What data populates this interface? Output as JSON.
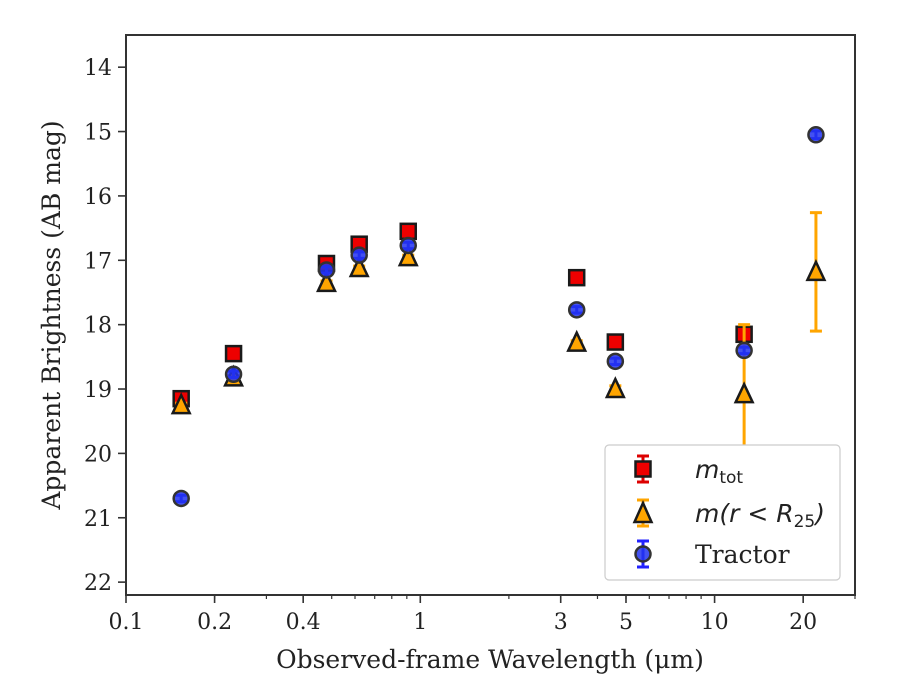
{
  "chart_data": {
    "type": "scatter",
    "xscale": "log",
    "yinverted": true,
    "xlabel": "Observed-frame Wavelength (μm)",
    "ylabel": "Apparent Brightness (AB mag)",
    "xlim": [
      0.1,
      30
    ],
    "ylim": [
      22.2,
      13.5
    ],
    "xticks": [
      {
        "value": 0.1,
        "label": "0.1"
      },
      {
        "value": 0.2,
        "label": "0.2"
      },
      {
        "value": 0.4,
        "label": "0.4"
      },
      {
        "value": 1,
        "label": "1"
      },
      {
        "value": 3,
        "label": "3"
      },
      {
        "value": 5,
        "label": "5"
      },
      {
        "value": 10,
        "label": "10"
      },
      {
        "value": 20,
        "label": "20"
      }
    ],
    "yticks": [
      {
        "value": 14,
        "label": "14"
      },
      {
        "value": 15,
        "label": "15"
      },
      {
        "value": 16,
        "label": "16"
      },
      {
        "value": 17,
        "label": "17"
      },
      {
        "value": 18,
        "label": "18"
      },
      {
        "value": 19,
        "label": "19"
      },
      {
        "value": 20,
        "label": "20"
      },
      {
        "value": 21,
        "label": "21"
      },
      {
        "value": 22,
        "label": "22"
      }
    ],
    "legend": {
      "placement": "lower-right",
      "entries": [
        {
          "label_main": "m",
          "label_sub": "tot",
          "label_rest": ""
        },
        {
          "label_main": "m(r < R",
          "label_sub": "25",
          "label_rest": ")"
        },
        {
          "label_main": "Tractor",
          "label_sub": "",
          "label_rest": ""
        }
      ]
    },
    "series": [
      {
        "marker": "square",
        "fill": "#ee0000",
        "edge": "#1a1a1a",
        "errcolor": "#dd0000",
        "points": [
          {
            "x": 0.154,
            "y": 19.15,
            "err": 0.05
          },
          {
            "x": 0.232,
            "y": 18.45,
            "err": 0.05
          },
          {
            "x": 0.48,
            "y": 17.05,
            "err": 0.05
          },
          {
            "x": 0.62,
            "y": 16.75,
            "err": 0.05
          },
          {
            "x": 0.91,
            "y": 16.55,
            "err": 0.05
          },
          {
            "x": 3.4,
            "y": 17.27,
            "err": 0.05
          },
          {
            "x": 4.6,
            "y": 18.27,
            "err": 0.05
          },
          {
            "x": 12.6,
            "y": 18.15,
            "err": 0.05
          }
        ]
      },
      {
        "marker": "triangle",
        "fill": "#ffa500",
        "edge": "#1a1a1a",
        "errcolor": "#ffa500",
        "points": [
          {
            "x": 0.154,
            "y": 19.25,
            "err": 0.03
          },
          {
            "x": 0.232,
            "y": 18.82,
            "err": 0.03
          },
          {
            "x": 0.48,
            "y": 17.35,
            "err": 0.03
          },
          {
            "x": 0.62,
            "y": 17.12,
            "err": 0.03
          },
          {
            "x": 0.91,
            "y": 16.95,
            "err": 0.03
          },
          {
            "x": 3.4,
            "y": 18.28,
            "err": 0.03
          },
          {
            "x": 4.6,
            "y": 19.0,
            "err": 0.05
          },
          {
            "x": 12.6,
            "y": 19.08,
            "err": 1.08
          },
          {
            "x": 22.1,
            "y": 17.18,
            "err": 0.92
          }
        ]
      },
      {
        "marker": "circle",
        "fill": "#2233ee",
        "edge": "#333333",
        "errcolor": "#2222ff",
        "points": [
          {
            "x": 0.154,
            "y": 20.7,
            "err": 0.05
          },
          {
            "x": 0.232,
            "y": 18.77,
            "err": 0.05
          },
          {
            "x": 0.48,
            "y": 17.15,
            "err": 0.05
          },
          {
            "x": 0.62,
            "y": 16.92,
            "err": 0.05
          },
          {
            "x": 0.91,
            "y": 16.77,
            "err": 0.05
          },
          {
            "x": 3.4,
            "y": 17.77,
            "err": 0.05
          },
          {
            "x": 4.6,
            "y": 18.57,
            "err": 0.05
          },
          {
            "x": 12.6,
            "y": 18.4,
            "err": 0.05
          },
          {
            "x": 22.1,
            "y": 15.05,
            "err": 0.06
          }
        ]
      }
    ]
  }
}
